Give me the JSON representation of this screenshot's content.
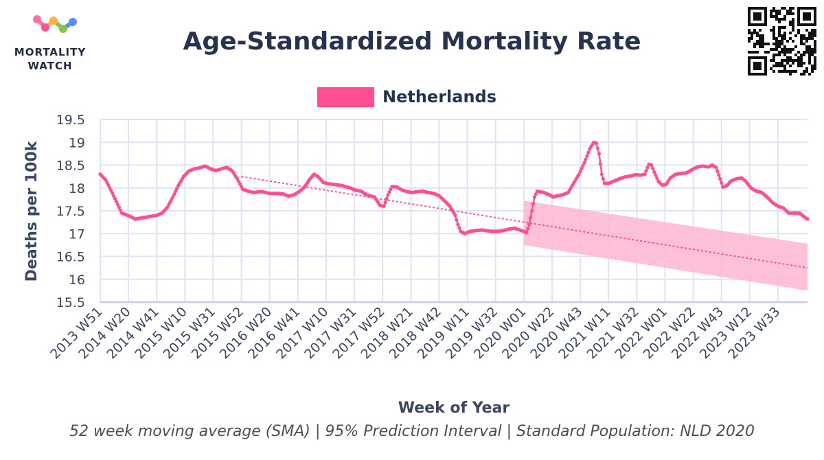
{
  "header": {
    "logo_line1": "MORTALITY",
    "logo_line2": "WATCH",
    "title": "Age-Standardized Mortality Rate"
  },
  "footer": {
    "subtitle": "52 week moving average (SMA) | 95% Prediction Interval | Standard Population: NLD 2020"
  },
  "colors": {
    "series": "#ff4f93",
    "band": "#ffb6d4",
    "grid": "#dfe4f2",
    "axis_text": "#3b4660",
    "title": "#26334f"
  },
  "chart_data": {
    "type": "line",
    "title": "Age-Standardized Mortality Rate",
    "xlabel": "Week of Year",
    "ylabel": "Deaths per 100k",
    "ylim": [
      15.5,
      19.5
    ],
    "yticks": [
      15.5,
      16,
      16.5,
      17,
      17.5,
      18,
      18.5,
      19,
      19.5
    ],
    "ytick_labels": [
      "15.5",
      "16",
      "16.5",
      "17",
      "17.5",
      "18",
      "18.5",
      "19",
      "19.5"
    ],
    "x_range": [
      "2013 W51",
      "2024 W1"
    ],
    "x_index_range": [
      0,
      526
    ],
    "xticks": [
      {
        "index": 0,
        "label": "2013 W51"
      },
      {
        "index": 21,
        "label": "2014 W20"
      },
      {
        "index": 42,
        "label": "2014 W41"
      },
      {
        "index": 63,
        "label": "2015 W10"
      },
      {
        "index": 84,
        "label": "2015 W31"
      },
      {
        "index": 105,
        "label": "2015 W52"
      },
      {
        "index": 126,
        "label": "2016 W20"
      },
      {
        "index": 147,
        "label": "2016 W41"
      },
      {
        "index": 168,
        "label": "2017 W10"
      },
      {
        "index": 189,
        "label": "2017 W31"
      },
      {
        "index": 210,
        "label": "2017 W52"
      },
      {
        "index": 231,
        "label": "2018 W21"
      },
      {
        "index": 252,
        "label": "2018 W42"
      },
      {
        "index": 273,
        "label": "2019 W11"
      },
      {
        "index": 294,
        "label": "2019 W32"
      },
      {
        "index": 315,
        "label": "2020 W01"
      },
      {
        "index": 336,
        "label": "2020 W22"
      },
      {
        "index": 357,
        "label": "2020 W43"
      },
      {
        "index": 378,
        "label": "2021 W11"
      },
      {
        "index": 399,
        "label": "2021 W32"
      },
      {
        "index": 420,
        "label": "2022 W01"
      },
      {
        "index": 441,
        "label": "2022 W22"
      },
      {
        "index": 462,
        "label": "2022 W43"
      },
      {
        "index": 483,
        "label": "2023 W12"
      },
      {
        "index": 504,
        "label": "2023 W33"
      }
    ],
    "grid": true,
    "legend": {
      "placement": "top-center"
    },
    "series": [
      {
        "name": "Netherlands",
        "anchors": [
          [
            0,
            18.3
          ],
          [
            4,
            18.18
          ],
          [
            8,
            17.95
          ],
          [
            12,
            17.7
          ],
          [
            16,
            17.45
          ],
          [
            22,
            17.38
          ],
          [
            26,
            17.32
          ],
          [
            30,
            17.34
          ],
          [
            34,
            17.36
          ],
          [
            38,
            17.38
          ],
          [
            42,
            17.4
          ],
          [
            46,
            17.45
          ],
          [
            50,
            17.58
          ],
          [
            54,
            17.8
          ],
          [
            58,
            18.05
          ],
          [
            62,
            18.25
          ],
          [
            66,
            18.37
          ],
          [
            70,
            18.42
          ],
          [
            74,
            18.44
          ],
          [
            78,
            18.48
          ],
          [
            82,
            18.42
          ],
          [
            86,
            18.38
          ],
          [
            90,
            18.42
          ],
          [
            94,
            18.45
          ],
          [
            98,
            18.38
          ],
          [
            102,
            18.2
          ],
          [
            106,
            17.97
          ],
          [
            110,
            17.93
          ],
          [
            114,
            17.9
          ],
          [
            120,
            17.92
          ],
          [
            126,
            17.88
          ],
          [
            132,
            17.88
          ],
          [
            136,
            17.87
          ],
          [
            140,
            17.82
          ],
          [
            144,
            17.85
          ],
          [
            148,
            17.92
          ],
          [
            152,
            18.02
          ],
          [
            156,
            18.2
          ],
          [
            159,
            18.3
          ],
          [
            162,
            18.25
          ],
          [
            166,
            18.12
          ],
          [
            170,
            18.09
          ],
          [
            176,
            18.07
          ],
          [
            180,
            18.05
          ],
          [
            186,
            18.0
          ],
          [
            190,
            17.95
          ],
          [
            194,
            17.93
          ],
          [
            198,
            17.85
          ],
          [
            204,
            17.8
          ],
          [
            208,
            17.62
          ],
          [
            211,
            17.6
          ],
          [
            214,
            17.85
          ],
          [
            217,
            18.03
          ],
          [
            220,
            18.03
          ],
          [
            224,
            17.96
          ],
          [
            228,
            17.92
          ],
          [
            232,
            17.9
          ],
          [
            236,
            17.92
          ],
          [
            240,
            17.93
          ],
          [
            244,
            17.9
          ],
          [
            248,
            17.88
          ],
          [
            252,
            17.83
          ],
          [
            256,
            17.72
          ],
          [
            260,
            17.6
          ],
          [
            264,
            17.4
          ],
          [
            266,
            17.2
          ],
          [
            268,
            17.05
          ],
          [
            271,
            17.0
          ],
          [
            275,
            17.05
          ],
          [
            280,
            17.07
          ],
          [
            284,
            17.08
          ],
          [
            288,
            17.06
          ],
          [
            292,
            17.05
          ],
          [
            296,
            17.05
          ],
          [
            300,
            17.07
          ],
          [
            304,
            17.1
          ],
          [
            308,
            17.12
          ],
          [
            312,
            17.08
          ],
          [
            315,
            17.05
          ],
          [
            317,
            17.02
          ],
          [
            319,
            17.2
          ],
          [
            321,
            17.5
          ],
          [
            323,
            17.8
          ],
          [
            325,
            17.93
          ],
          [
            330,
            17.9
          ],
          [
            334,
            17.85
          ],
          [
            337,
            17.8
          ],
          [
            340,
            17.83
          ],
          [
            344,
            17.85
          ],
          [
            348,
            17.9
          ],
          [
            352,
            18.1
          ],
          [
            356,
            18.3
          ],
          [
            360,
            18.55
          ],
          [
            364,
            18.85
          ],
          [
            367,
            19.0
          ],
          [
            369,
            18.98
          ],
          [
            371,
            18.75
          ],
          [
            373,
            18.3
          ],
          [
            375,
            18.1
          ],
          [
            378,
            18.1
          ],
          [
            382,
            18.15
          ],
          [
            386,
            18.2
          ],
          [
            390,
            18.24
          ],
          [
            394,
            18.26
          ],
          [
            398,
            18.29
          ],
          [
            402,
            18.28
          ],
          [
            405,
            18.3
          ],
          [
            408,
            18.52
          ],
          [
            410,
            18.5
          ],
          [
            412,
            18.35
          ],
          [
            415,
            18.15
          ],
          [
            418,
            18.06
          ],
          [
            421,
            18.08
          ],
          [
            424,
            18.22
          ],
          [
            428,
            18.3
          ],
          [
            432,
            18.32
          ],
          [
            436,
            18.33
          ],
          [
            440,
            18.4
          ],
          [
            444,
            18.46
          ],
          [
            448,
            18.48
          ],
          [
            452,
            18.46
          ],
          [
            455,
            18.5
          ],
          [
            458,
            18.45
          ],
          [
            461,
            18.2
          ],
          [
            463,
            18.02
          ],
          [
            466,
            18.05
          ],
          [
            469,
            18.15
          ],
          [
            473,
            18.2
          ],
          [
            477,
            18.22
          ],
          [
            480,
            18.15
          ],
          [
            484,
            18.0
          ],
          [
            488,
            17.93
          ],
          [
            492,
            17.9
          ],
          [
            496,
            17.8
          ],
          [
            500,
            17.68
          ],
          [
            504,
            17.6
          ],
          [
            508,
            17.56
          ],
          [
            512,
            17.45
          ],
          [
            516,
            17.45
          ],
          [
            520,
            17.45
          ],
          [
            523,
            17.38
          ],
          [
            526,
            17.32
          ]
        ]
      }
    ],
    "trend_line": {
      "start": [
        105,
        18.25
      ],
      "end": [
        526,
        16.25
      ]
    },
    "prediction_interval": {
      "x": [
        315,
        526
      ],
      "upper": [
        17.72,
        16.78
      ],
      "lower": [
        16.75,
        15.75
      ]
    }
  }
}
